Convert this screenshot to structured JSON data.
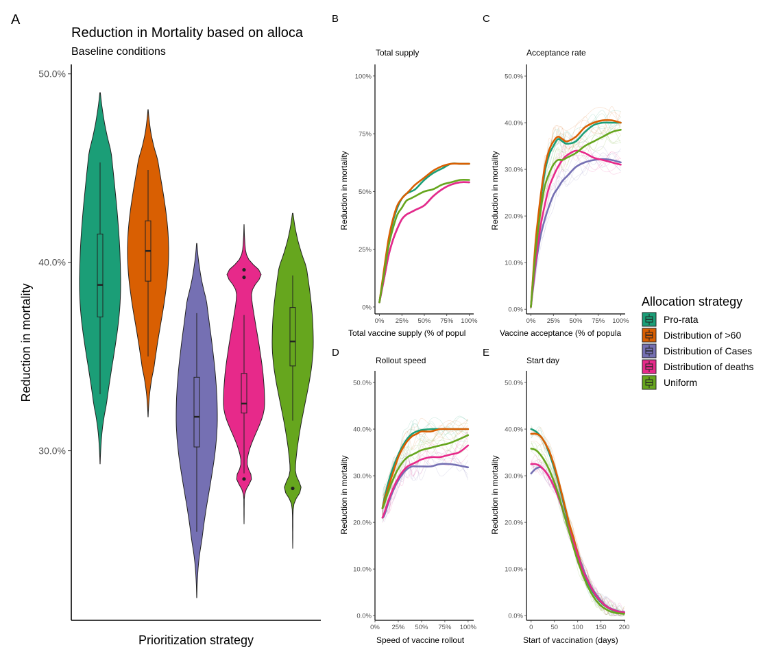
{
  "colors": {
    "Pro-rata": "#1b9e77",
    "Distribution of >60": "#d95f02",
    "Distribution of Cases": "#7570b3",
    "Distribution of deaths": "#e7298a",
    "Uniform": "#66a61e"
  },
  "legend": {
    "title": "Allocation strategy",
    "items": [
      "Pro-rata",
      "Distribution of >60",
      "Distribution of Cases",
      "Distribution of deaths",
      "Uniform"
    ]
  },
  "chart_data": [
    {
      "id": "A",
      "panel_label": "A",
      "type": "violin",
      "title": "Reduction in Mortality based on alloca",
      "subtitle": "Baseline conditions",
      "xlabel": "Prioritization strategy",
      "ylabel": "Reduction in mortality",
      "ylim": [
        0.21,
        0.505
      ],
      "yticks": [
        0.3,
        0.4,
        0.5
      ],
      "ytick_labels": [
        "30.0%",
        "40.0%",
        "50.0%"
      ],
      "series": [
        {
          "name": "Pro-rata",
          "min": 0.293,
          "q1": 0.371,
          "median": 0.388,
          "q3": 0.415,
          "max": 0.49,
          "whisker_low": 0.33,
          "whisker_high": 0.453,
          "outliers": []
        },
        {
          "name": "Distribution of >60",
          "min": 0.318,
          "q1": 0.39,
          "median": 0.406,
          "q3": 0.422,
          "max": 0.481,
          "whisker_low": 0.35,
          "whisker_high": 0.449,
          "outliers": []
        },
        {
          "name": "Distribution of Cases",
          "min": 0.222,
          "q1": 0.302,
          "median": 0.318,
          "q3": 0.339,
          "max": 0.41,
          "whisker_low": 0.257,
          "whisker_high": 0.373,
          "outliers": []
        },
        {
          "name": "Distribution of deaths",
          "min": 0.261,
          "q1": 0.32,
          "median": 0.325,
          "q3": 0.341,
          "max": 0.42,
          "whisker_low": 0.288,
          "whisker_high": 0.372,
          "outliers": [
            0.396,
            0.392,
            0.285
          ]
        },
        {
          "name": "Uniform",
          "min": 0.248,
          "q1": 0.345,
          "median": 0.358,
          "q3": 0.376,
          "max": 0.426,
          "whisker_low": 0.316,
          "whisker_high": 0.393,
          "outliers": [
            0.28
          ]
        }
      ]
    },
    {
      "id": "B",
      "panel_label": "B",
      "type": "line",
      "title": "Total supply",
      "xlabel": "Total vaccine supply (% of popul",
      "ylabel": "Reduction in mortality",
      "xlim": [
        -0.05,
        1.05
      ],
      "ylim": [
        -0.03,
        1.05
      ],
      "xticks": [
        0,
        0.25,
        0.5,
        0.75,
        1.0
      ],
      "xtick_labels": [
        "0%",
        "25%",
        "50%",
        "75%",
        "100%"
      ],
      "yticks": [
        0,
        0.25,
        0.5,
        0.75,
        1.0
      ],
      "ytick_labels": [
        "0%",
        "25%",
        "50%",
        "75%",
        "100%"
      ],
      "x": [
        0.0,
        0.05,
        0.1,
        0.15,
        0.2,
        0.25,
        0.3,
        0.35,
        0.4,
        0.5,
        0.6,
        0.7,
        0.8,
        0.9,
        1.0
      ],
      "series": [
        {
          "name": "Pro-rata",
          "values": [
            0.02,
            0.15,
            0.28,
            0.37,
            0.43,
            0.47,
            0.49,
            0.5,
            0.51,
            0.55,
            0.58,
            0.6,
            0.62,
            0.62,
            0.62
          ]
        },
        {
          "name": "Distribution of >60",
          "values": [
            0.02,
            0.16,
            0.29,
            0.38,
            0.44,
            0.47,
            0.49,
            0.51,
            0.53,
            0.56,
            0.59,
            0.61,
            0.62,
            0.62,
            0.62
          ]
        },
        {
          "name": "Distribution of Cases",
          "values": [
            0.02,
            0.12,
            0.22,
            0.29,
            0.34,
            0.38,
            0.4,
            0.41,
            0.42,
            0.44,
            0.48,
            0.51,
            0.53,
            0.54,
            0.54
          ]
        },
        {
          "name": "Distribution of deaths",
          "values": [
            0.02,
            0.12,
            0.22,
            0.29,
            0.34,
            0.38,
            0.4,
            0.41,
            0.42,
            0.44,
            0.48,
            0.51,
            0.53,
            0.54,
            0.54
          ]
        },
        {
          "name": "Uniform",
          "values": [
            0.02,
            0.14,
            0.26,
            0.34,
            0.4,
            0.43,
            0.46,
            0.47,
            0.48,
            0.5,
            0.51,
            0.53,
            0.54,
            0.55,
            0.55
          ]
        }
      ]
    },
    {
      "id": "C",
      "panel_label": "C",
      "type": "line",
      "title": "Acceptance rate",
      "xlabel": "Vaccine acceptance (% of popula",
      "ylabel": "Reduction in mortality",
      "xlim": [
        -0.05,
        1.05
      ],
      "ylim": [
        -0.01,
        0.525
      ],
      "xticks": [
        0,
        0.25,
        0.5,
        0.75,
        1.0
      ],
      "xtick_labels": [
        "0%",
        "25%",
        "50%",
        "75%",
        "100%"
      ],
      "yticks": [
        0,
        0.1,
        0.2,
        0.3,
        0.4,
        0.5
      ],
      "ytick_labels": [
        "0.0%",
        "10.0%",
        "20.0%",
        "30.0%",
        "40.0%",
        "50.0%"
      ],
      "x": [
        0.0,
        0.05,
        0.1,
        0.15,
        0.2,
        0.25,
        0.3,
        0.35,
        0.4,
        0.5,
        0.6,
        0.7,
        0.8,
        0.9,
        1.0
      ],
      "series": [
        {
          "name": "Pro-rata",
          "values": [
            0.005,
            0.13,
            0.22,
            0.29,
            0.33,
            0.35,
            0.365,
            0.36,
            0.355,
            0.36,
            0.38,
            0.395,
            0.4,
            0.4,
            0.4
          ]
        },
        {
          "name": "Distribution of >60",
          "values": [
            0.005,
            0.14,
            0.23,
            0.3,
            0.34,
            0.36,
            0.37,
            0.365,
            0.36,
            0.37,
            0.39,
            0.4,
            0.405,
            0.405,
            0.4
          ]
        },
        {
          "name": "Distribution of Cases",
          "values": [
            0.005,
            0.09,
            0.15,
            0.19,
            0.22,
            0.245,
            0.26,
            0.275,
            0.285,
            0.305,
            0.315,
            0.32,
            0.322,
            0.32,
            0.315
          ]
        },
        {
          "name": "Distribution of deaths",
          "values": [
            0.005,
            0.1,
            0.17,
            0.22,
            0.26,
            0.285,
            0.305,
            0.32,
            0.33,
            0.34,
            0.335,
            0.325,
            0.32,
            0.315,
            0.31
          ]
        },
        {
          "name": "Uniform",
          "values": [
            0.005,
            0.12,
            0.2,
            0.26,
            0.29,
            0.31,
            0.32,
            0.32,
            0.325,
            0.335,
            0.35,
            0.36,
            0.37,
            0.38,
            0.385
          ]
        }
      ]
    },
    {
      "id": "D",
      "panel_label": "D",
      "type": "line",
      "title": "Rollout speed",
      "xlabel": "Speed of vaccine rollout",
      "ylabel": "Reduction in mortality",
      "xlim": [
        0.0,
        1.06
      ],
      "ylim": [
        -0.01,
        0.525
      ],
      "xticks": [
        0,
        0.25,
        0.5,
        0.75,
        1.0
      ],
      "xtick_labels": [
        "0%",
        "25%",
        "50%",
        "75%",
        "100%"
      ],
      "yticks": [
        0,
        0.1,
        0.2,
        0.3,
        0.4,
        0.5
      ],
      "ytick_labels": [
        "0.0%",
        "10.0%",
        "20.0%",
        "30.0%",
        "40.0%",
        "50.0%"
      ],
      "x": [
        0.08,
        0.1,
        0.15,
        0.2,
        0.25,
        0.3,
        0.35,
        0.4,
        0.45,
        0.5,
        0.6,
        0.7,
        0.8,
        0.9,
        1.0
      ],
      "series": [
        {
          "name": "Pro-rata",
          "values": [
            0.23,
            0.25,
            0.29,
            0.32,
            0.345,
            0.365,
            0.38,
            0.39,
            0.395,
            0.398,
            0.4,
            0.4,
            0.4,
            0.4,
            0.4
          ]
        },
        {
          "name": "Distribution of >60",
          "values": [
            0.23,
            0.245,
            0.28,
            0.31,
            0.34,
            0.36,
            0.375,
            0.385,
            0.39,
            0.395,
            0.395,
            0.4,
            0.4,
            0.4,
            0.4
          ]
        },
        {
          "name": "Distribution of Cases",
          "values": [
            0.21,
            0.215,
            0.245,
            0.27,
            0.29,
            0.305,
            0.315,
            0.32,
            0.32,
            0.32,
            0.32,
            0.325,
            0.325,
            0.322,
            0.318
          ]
        },
        {
          "name": "Distribution of deaths",
          "values": [
            0.21,
            0.22,
            0.25,
            0.275,
            0.295,
            0.31,
            0.32,
            0.325,
            0.33,
            0.335,
            0.34,
            0.34,
            0.345,
            0.35,
            0.365
          ]
        },
        {
          "name": "Uniform",
          "values": [
            0.23,
            0.24,
            0.27,
            0.295,
            0.315,
            0.33,
            0.34,
            0.345,
            0.35,
            0.355,
            0.36,
            0.365,
            0.37,
            0.378,
            0.387
          ]
        }
      ]
    },
    {
      "id": "E",
      "panel_label": "E",
      "type": "line",
      "title": "Start day",
      "xlabel": "Start of vaccination (days)",
      "ylabel": "Reduction in mortality",
      "xlim": [
        -10,
        202
      ],
      "ylim": [
        -0.01,
        0.525
      ],
      "xticks": [
        0,
        50,
        100,
        150,
        200
      ],
      "xtick_labels": [
        "0",
        "50",
        "100",
        "150",
        "200"
      ],
      "yticks": [
        0,
        0.1,
        0.2,
        0.3,
        0.4,
        0.5
      ],
      "ytick_labels": [
        "0.0%",
        "10.0%",
        "20.0%",
        "30.0%",
        "40.0%",
        "50.0%"
      ],
      "x": [
        0,
        10,
        20,
        30,
        40,
        50,
        60,
        70,
        80,
        90,
        100,
        110,
        120,
        130,
        140,
        150,
        160,
        170,
        180,
        190,
        200
      ],
      "series": [
        {
          "name": "Pro-rata",
          "values": [
            0.4,
            0.395,
            0.385,
            0.37,
            0.345,
            0.315,
            0.28,
            0.24,
            0.2,
            0.165,
            0.13,
            0.1,
            0.075,
            0.055,
            0.04,
            0.028,
            0.02,
            0.014,
            0.01,
            0.008,
            0.007
          ]
        },
        {
          "name": "Distribution of >60",
          "values": [
            0.39,
            0.39,
            0.385,
            0.37,
            0.35,
            0.32,
            0.285,
            0.245,
            0.205,
            0.17,
            0.135,
            0.105,
            0.08,
            0.06,
            0.043,
            0.03,
            0.021,
            0.015,
            0.011,
            0.008,
            0.007
          ]
        },
        {
          "name": "Distribution of Cases",
          "values": [
            0.305,
            0.315,
            0.318,
            0.31,
            0.295,
            0.275,
            0.25,
            0.22,
            0.19,
            0.16,
            0.13,
            0.105,
            0.08,
            0.06,
            0.045,
            0.032,
            0.022,
            0.016,
            0.012,
            0.009,
            0.008
          ]
        },
        {
          "name": "Distribution of deaths",
          "values": [
            0.325,
            0.325,
            0.32,
            0.31,
            0.295,
            0.275,
            0.25,
            0.22,
            0.19,
            0.16,
            0.13,
            0.1,
            0.078,
            0.058,
            0.042,
            0.03,
            0.021,
            0.015,
            0.011,
            0.008,
            0.007
          ]
        },
        {
          "name": "Uniform",
          "values": [
            0.358,
            0.355,
            0.345,
            0.33,
            0.31,
            0.285,
            0.255,
            0.22,
            0.185,
            0.15,
            0.118,
            0.09,
            0.066,
            0.047,
            0.032,
            0.021,
            0.014,
            0.009,
            0.006,
            0.005,
            0.004
          ]
        }
      ]
    }
  ]
}
